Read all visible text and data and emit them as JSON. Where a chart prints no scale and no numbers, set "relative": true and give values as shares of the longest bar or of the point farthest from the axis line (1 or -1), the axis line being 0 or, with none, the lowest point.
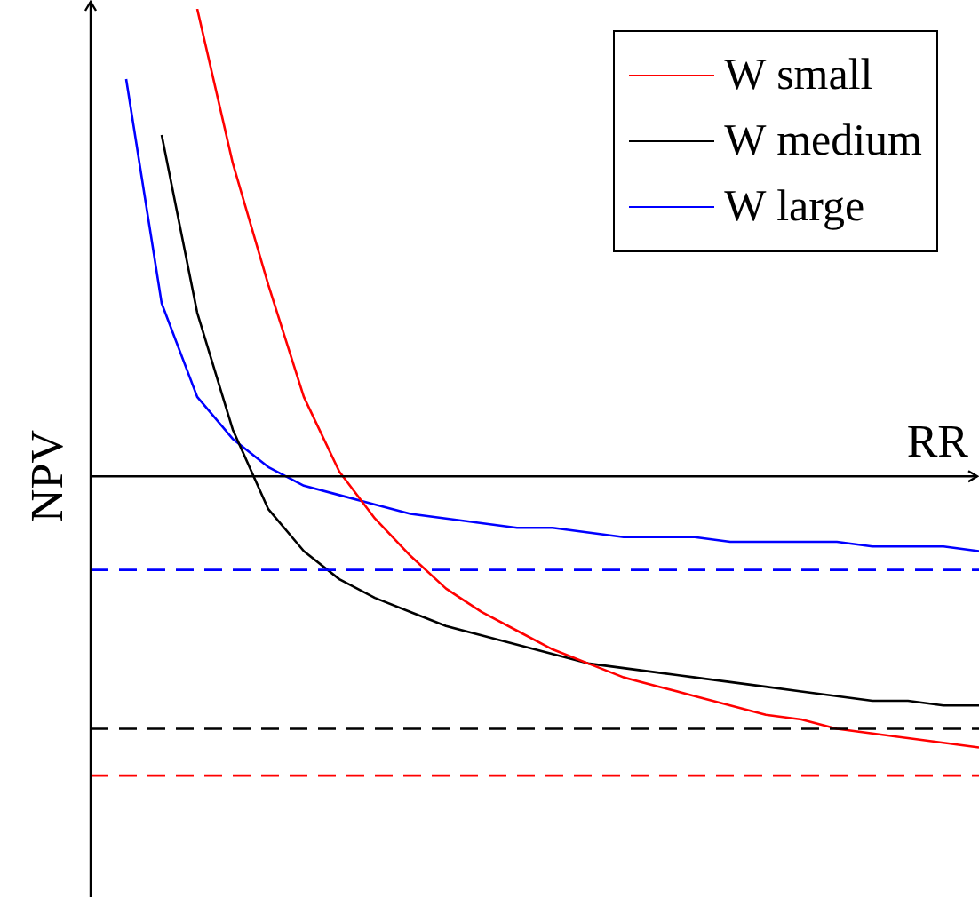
{
  "chart_data": {
    "type": "line",
    "xlabel": "RR",
    "ylabel": "NPV",
    "relative": true,
    "legend": "top right",
    "marker": "none",
    "line_style": "solid",
    "categories": [
      null,
      null,
      null,
      null,
      null,
      null,
      null,
      null,
      null,
      null,
      null,
      null,
      null,
      null,
      null,
      null,
      null,
      null,
      null,
      null,
      null,
      null,
      null,
      null,
      null,
      null
    ],
    "series": [
      {
        "name": "W small",
        "color": "#ff0000",
        "values": [
          null,
          null,
          null,
          1.0,
          0.67,
          0.41,
          0.17,
          0.01,
          -0.09,
          -0.17,
          -0.24,
          -0.29,
          -0.33,
          -0.37,
          -0.4,
          -0.43,
          -0.45,
          -0.47,
          -0.49,
          -0.51,
          -0.52,
          -0.54,
          -0.55,
          -0.56,
          -0.57,
          -0.58
        ]
      },
      {
        "name": "W medium",
        "color": "#000000",
        "values": [
          null,
          null,
          0.73,
          0.35,
          0.1,
          -0.07,
          -0.16,
          -0.22,
          -0.26,
          -0.29,
          -0.32,
          -0.34,
          -0.36,
          -0.38,
          -0.4,
          -0.41,
          -0.42,
          -0.43,
          -0.44,
          -0.45,
          -0.46,
          -0.47,
          -0.48,
          -0.48,
          -0.49,
          -0.49
        ]
      },
      {
        "name": "W large",
        "color": "#0000ff",
        "values": [
          null,
          0.85,
          0.37,
          0.17,
          0.08,
          0.02,
          -0.02,
          -0.04,
          -0.06,
          -0.08,
          -0.09,
          -0.1,
          -0.11,
          -0.11,
          -0.12,
          -0.13,
          -0.13,
          -0.13,
          -0.14,
          -0.14,
          -0.14,
          -0.14,
          -0.15,
          -0.15,
          -0.15,
          -0.16
        ]
      }
    ],
    "ref_lines": [
      {
        "axis": "y",
        "value": -0.2,
        "color": "#0000ff",
        "line_style": "dashed"
      },
      {
        "axis": "y",
        "value": -0.54,
        "color": "#000000",
        "line_style": "dashed"
      },
      {
        "axis": "y",
        "value": -0.64,
        "color": "#ff0000",
        "line_style": "dashed"
      }
    ]
  }
}
